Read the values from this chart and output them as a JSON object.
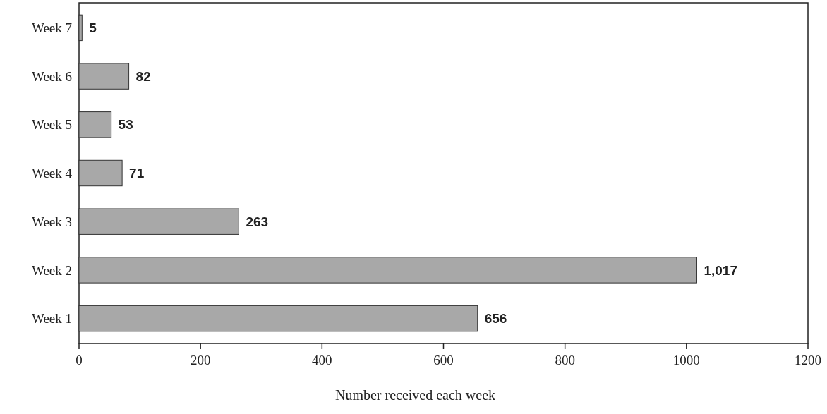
{
  "chart_data": {
    "type": "bar",
    "orientation": "horizontal",
    "xlabel": "Number received each week",
    "categories": [
      "Week 7",
      "Week 6",
      "Week 5",
      "Week 4",
      "Week 3",
      "Week 2",
      "Week 1"
    ],
    "values": [
      5,
      82,
      53,
      71,
      263,
      1017,
      656
    ],
    "value_labels": [
      "5",
      "82",
      "53",
      "71",
      "263",
      "1,017",
      "656"
    ],
    "color": "#a8a8a8",
    "xlim": [
      0,
      1200
    ],
    "xticks": [
      0,
      200,
      400,
      600,
      800,
      1000,
      1200
    ],
    "grid": false
  }
}
